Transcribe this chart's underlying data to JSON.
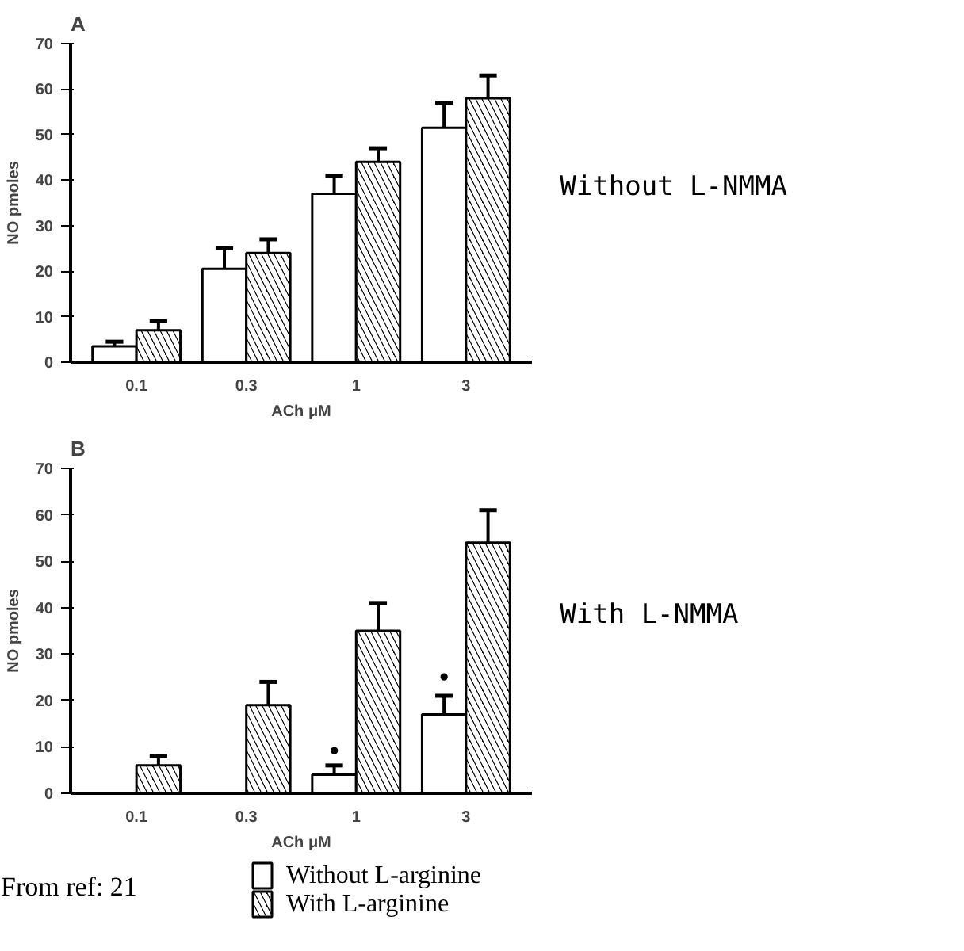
{
  "chart_data": [
    {
      "type": "bar",
      "title": "A",
      "categories": [
        "0.1",
        "0.3",
        "1",
        "3"
      ],
      "xlabel": "ACh μM",
      "ylabel": "NO pmoles",
      "ylim": [
        0,
        70
      ],
      "yticks": [
        0,
        10,
        20,
        30,
        40,
        50,
        60,
        70
      ],
      "grid": false,
      "legend": false,
      "series": [
        {
          "color": "#ffffff",
          "values": [
            3.5,
            20.5,
            37,
            51.5
          ],
          "errors": [
            [
              3.5,
              4.5
            ],
            [
              20.5,
              25
            ],
            [
              37,
              41
            ],
            [
              51.5,
              57
            ]
          ]
        },
        {
          "color": "#000000",
          "values": [
            7,
            24,
            44,
            58
          ],
          "errors": [
            [
              7,
              9
            ],
            [
              24,
              27
            ],
            [
              44,
              47
            ],
            [
              58,
              63
            ]
          ]
        }
      ],
      "annotations": [
        "Without L-NMMA"
      ]
    },
    {
      "type": "bar",
      "title": "B",
      "categories": [
        "0.1",
        "0.3",
        "1",
        "3"
      ],
      "xlabel": "ACh μM",
      "ylabel": "NO pmoles",
      "ylim": [
        0,
        70
      ],
      "yticks": [
        0,
        10,
        20,
        30,
        40,
        50,
        60,
        70
      ],
      "grid": false,
      "legend": "bottom",
      "series": [
        {
          "name": "Without L-arginine",
          "color": "#ffffff",
          "values": [
            null,
            null,
            4,
            17
          ],
          "errors": [
            null,
            null,
            [
              4,
              6
            ],
            [
              17,
              21
            ]
          ]
        },
        {
          "name": "With L-arginine",
          "color": "#000000",
          "values": [
            6,
            19,
            35,
            54
          ],
          "errors": [
            [
              6,
              8
            ],
            [
              19,
              24
            ],
            [
              35,
              41
            ],
            [
              54,
              61
            ]
          ]
        }
      ],
      "annotations": [
        "With L-NMMA",
        {
          "text": "•",
          "x": "1",
          "y": 9
        },
        {
          "text": "•",
          "x": "3",
          "y": 25
        },
        "From ref:  21"
      ]
    }
  ]
}
